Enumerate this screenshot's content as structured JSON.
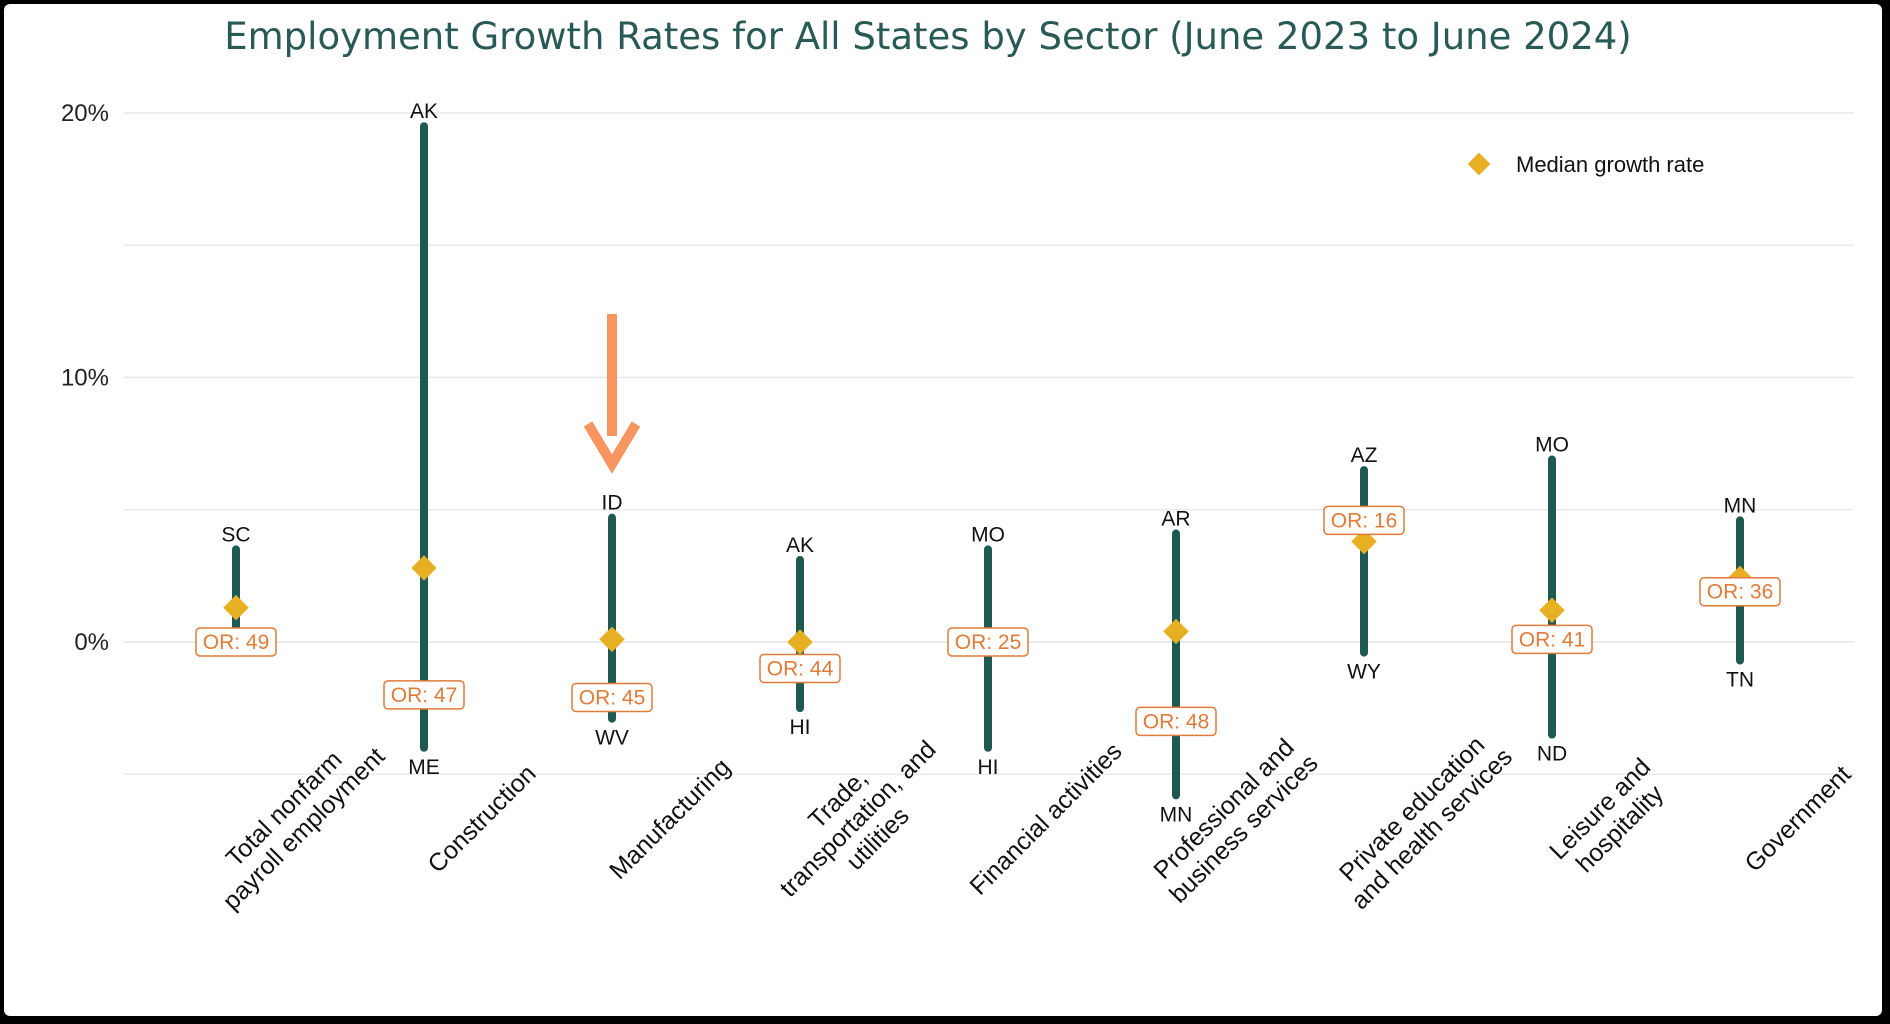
{
  "chart_data": {
    "type": "range",
    "title": "Employment Growth Rates for All States by Sector (June 2023 to June 2024)",
    "ylim": [
      -5.3,
      21
    ],
    "yticks": [
      0,
      10,
      20
    ],
    "ytick_labels": [
      "0%",
      "10%",
      "20%"
    ],
    "grid": true,
    "legend": {
      "label": "Median growth rate",
      "position": "top-right",
      "color": "#e6b022"
    },
    "colors": {
      "range": "#1f5a52",
      "median": "#e6b022",
      "or_label": "#e07b3a",
      "arrow": "#f6955f",
      "title": "#2a5a55"
    },
    "annotation": {
      "type": "arrow",
      "points_to": "Manufacturing"
    },
    "series": [
      {
        "category": "Total nonfarm payroll employment",
        "lines": [
          "Total nonfarm",
          "payroll employment"
        ],
        "max": 3.5,
        "max_state": "SC",
        "min": 0.5,
        "min_state": "TN",
        "median": 1.3,
        "or_label": "OR: 49",
        "or_value": 0
      },
      {
        "category": "Construction",
        "lines": [
          "Construction"
        ],
        "max": 19.5,
        "max_state": "AK",
        "min": -4.0,
        "min_state": "ME",
        "median": 2.8,
        "or_label": "OR: 47",
        "or_value": -2.0
      },
      {
        "category": "Manufacturing",
        "lines": [
          "Manufacturing"
        ],
        "max": 4.7,
        "max_state": "ID",
        "min": -2.9,
        "min_state": "WV",
        "median": 0.1,
        "or_label": "OR: 45",
        "or_value": -2.1
      },
      {
        "category": "Trade, transportation, and utilities",
        "lines": [
          "Trade,",
          "transportation, and",
          "utilities"
        ],
        "max": 3.1,
        "max_state": "AK",
        "min": -2.5,
        "min_state": "HI",
        "median": 0.0,
        "or_label": "OR: 44",
        "or_value": -1.0
      },
      {
        "category": "Financial activities",
        "lines": [
          "Financial activities"
        ],
        "max": 3.5,
        "max_state": "MO",
        "min": -4.0,
        "min_state": "HI",
        "median": 0.0,
        "or_label": "OR: 25",
        "or_value": 0.0
      },
      {
        "category": "Professional and business services",
        "lines": [
          "Professional and",
          "business services"
        ],
        "max": 4.1,
        "max_state": "AR",
        "min": -5.8,
        "min_state": "MN",
        "median": 0.4,
        "or_label": "OR: 48",
        "or_value": -3.0
      },
      {
        "category": "Private education and health services",
        "lines": [
          "Private education",
          "and health services"
        ],
        "max": 6.5,
        "max_state": "AZ",
        "min": -0.4,
        "min_state": "WY",
        "median": 3.8,
        "or_label": "OR: 16",
        "or_value": 4.6
      },
      {
        "category": "Leisure and hospitality",
        "lines": [
          "Leisure and",
          "hospitality"
        ],
        "max": 6.9,
        "max_state": "MO",
        "min": -3.5,
        "min_state": "ND",
        "median": 1.2,
        "or_label": "OR: 41",
        "or_value": 0.1
      },
      {
        "category": "Government",
        "lines": [
          "Government"
        ],
        "max": 4.6,
        "max_state": "MN",
        "min": -0.7,
        "min_state": "TN",
        "median": 2.4,
        "or_label": "OR: 36",
        "or_value": 1.9
      }
    ]
  }
}
